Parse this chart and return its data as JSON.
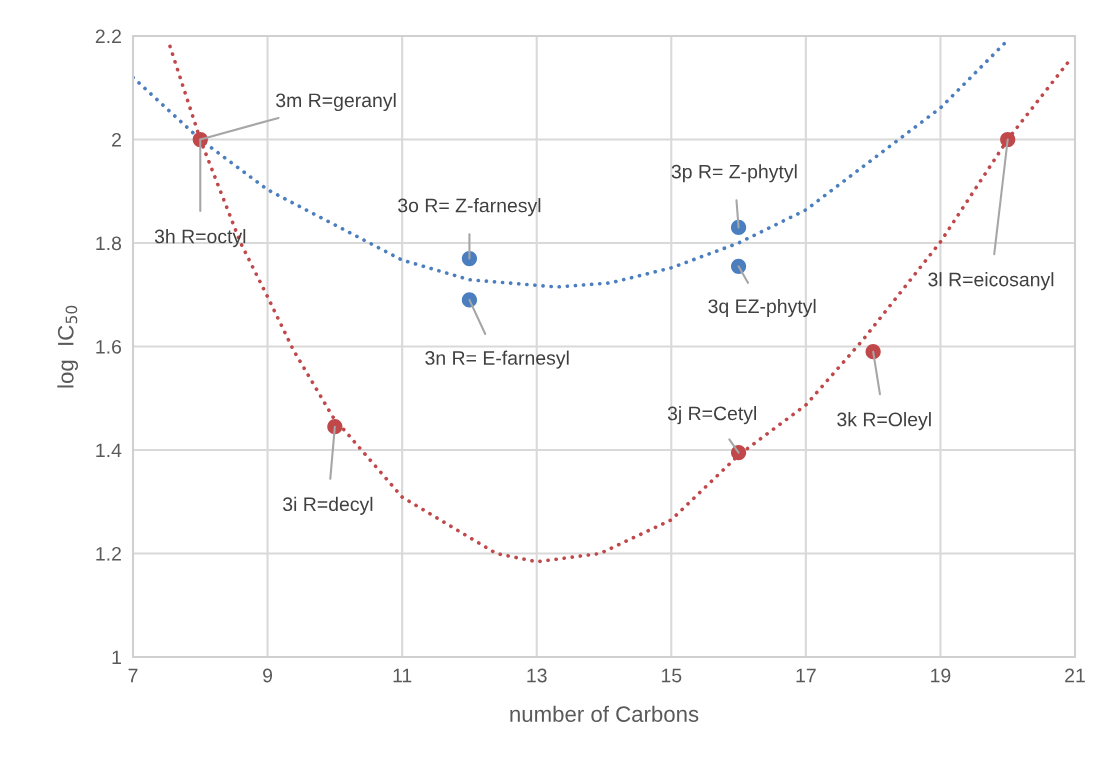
{
  "chart_data": {
    "type": "scatter",
    "xlabel": "number of Carbons",
    "ylabel": "log  IC$_{50}$",
    "xlim": [
      7,
      21
    ],
    "xticks": [
      7,
      9,
      11,
      13,
      15,
      17,
      19,
      21
    ],
    "ylim": [
      1,
      2.2
    ],
    "yticks": [
      1,
      1.2,
      1.4,
      1.6,
      1.8,
      2,
      2.2
    ],
    "grid": true,
    "marker": "circle",
    "series": [
      {
        "type": "line",
        "line_style": "dotted",
        "marker": "none",
        "color": "#4a7ebf",
        "x": [
          7,
          8,
          9,
          11,
          12,
          13.3,
          14.1,
          15,
          16,
          17,
          19,
          20
        ],
        "values": [
          2.12,
          2.0,
          1.903,
          1.767,
          1.729,
          1.715,
          1.723,
          1.752,
          1.8,
          1.864,
          2.061,
          2.192
        ]
      },
      {
        "type": "line",
        "line_style": "dotted",
        "marker": "none",
        "color": "#c0474a",
        "x": [
          7.55,
          8,
          8.6,
          9,
          9.38,
          9.97,
          11,
          12.4,
          13,
          13.94,
          15,
          16,
          17,
          17.85,
          19,
          20,
          20.95
        ],
        "values": [
          2.18,
          2.0,
          1.8,
          1.696,
          1.594,
          1.464,
          1.309,
          1.2,
          1.184,
          1.2,
          1.265,
          1.39,
          1.487,
          1.613,
          1.802,
          2.0,
          2.158
        ]
      },
      {
        "color": "#4a7ebf",
        "x": [
          12,
          12,
          16,
          16
        ],
        "values": [
          1.77,
          1.69,
          1.83,
          1.755
        ]
      },
      {
        "color": "#c0474a",
        "x": [
          8,
          10,
          16,
          18,
          20
        ],
        "values": [
          2.0,
          1.445,
          1.395,
          1.59,
          2.0
        ]
      }
    ],
    "annotations": [
      {
        "text": "3m R=geranyl",
        "x": 8,
        "y": 2.0
      },
      {
        "text": "3h R=octyl",
        "x": 8,
        "y": 2.0
      },
      {
        "text": "3o R= Z-farnesyl",
        "x": 12,
        "y": 1.77
      },
      {
        "text": "3n R= E-farnesyl",
        "x": 12,
        "y": 1.69
      },
      {
        "text": "3p R= Z-phytyl",
        "x": 16,
        "y": 1.83
      },
      {
        "text": "3q EZ-phytyl",
        "x": 16,
        "y": 1.755
      },
      {
        "text": "3l R=eicosanyl",
        "x": 20,
        "y": 2.0
      },
      {
        "text": "3i R=decyl",
        "x": 10,
        "y": 1.445
      },
      {
        "text": "3j R=Cetyl",
        "x": 16,
        "y": 1.395
      },
      {
        "text": "3k R=Oleyl",
        "x": 18,
        "y": 1.59
      }
    ]
  }
}
